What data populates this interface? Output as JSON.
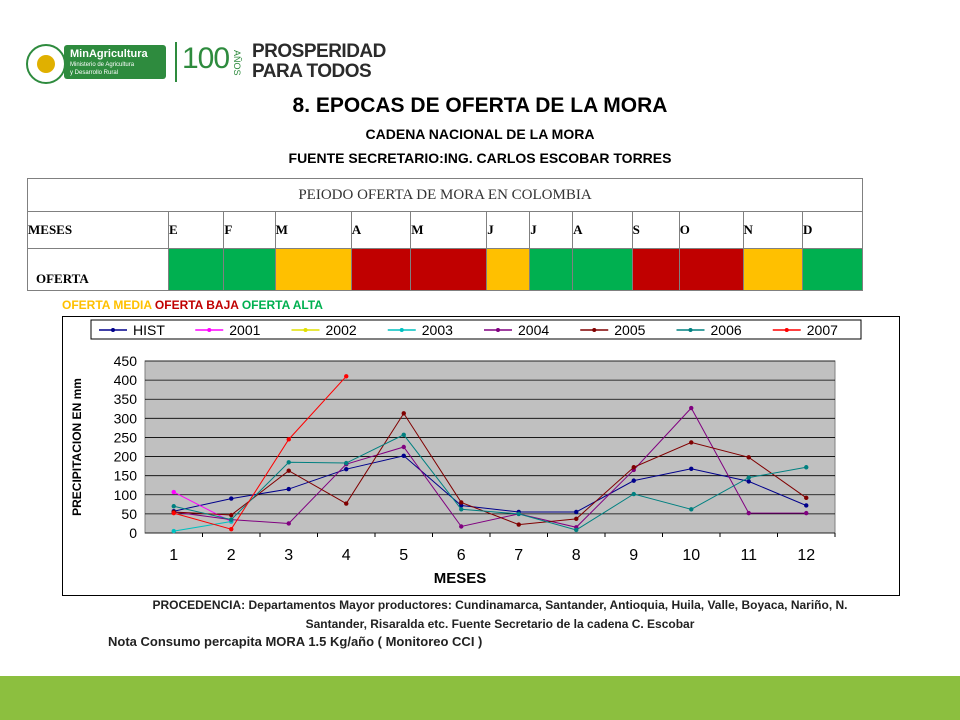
{
  "logos": {
    "ministry_name": "MinAgricultura",
    "ministry_line2": "Ministerio de Agricultura",
    "ministry_line3": "y Desarrollo Rural",
    "centenary_number": "100",
    "centenary_word": "AÑOS",
    "slogan_line1": "PROSPERIDAD",
    "slogan_line2": "PARA TODOS"
  },
  "titles": {
    "main": "8. EPOCAS DE OFERTA DE LA  MORA",
    "sub1": "CADENA NACIONAL DE LA MORA",
    "sub2": "FUENTE SECRETARIO:ING. CARLOS ESCOBAR TORRES"
  },
  "offer_table": {
    "header": "PEIODO OFERTA DE MORA EN COLOMBIA",
    "months_label": "MESES",
    "months": [
      "E",
      "F",
      "M",
      "A",
      "M",
      "J",
      "J",
      "A",
      "S",
      "O",
      "N",
      "D"
    ],
    "offer_label": "OFERTA",
    "offer_levels": [
      "alta",
      "alta",
      "media",
      "baja",
      "baja",
      "media",
      "alta",
      "alta",
      "baja",
      "baja",
      "media",
      "alta"
    ],
    "level_colors": {
      "alta": "#00b050",
      "media": "#ffc000",
      "baja": "#c00000"
    }
  },
  "offer_legend": {
    "media": "OFERTA MEDIA",
    "baja": "OFERTA BAJA",
    "alta": "OFERTA ALTA",
    "media_color": "#ffc000",
    "baja_color": "#c00000",
    "alta_color": "#00b050"
  },
  "chart_data": {
    "type": "line",
    "xlabel": "MESES",
    "ylabel": "PRECIPITACION EN mm",
    "x": [
      1,
      2,
      3,
      4,
      5,
      6,
      7,
      8,
      9,
      10,
      11,
      12
    ],
    "ylim": [
      0,
      450
    ],
    "yticks": [
      0,
      50,
      100,
      150,
      200,
      250,
      300,
      350,
      400,
      450
    ],
    "grid": true,
    "plot_background": "#c0c0c0",
    "legend_position": "top",
    "series": [
      {
        "name": "HIST",
        "color": "#00008b",
        "values": [
          57,
          90,
          115,
          167,
          202,
          72,
          55,
          55,
          137,
          168,
          135,
          72
        ]
      },
      {
        "name": "2001",
        "color": "#ff00ff",
        "values": [
          107,
          30,
          null,
          null,
          null,
          null,
          null,
          null,
          null,
          null,
          null,
          null
        ]
      },
      {
        "name": "2002",
        "color": "#e0e000",
        "values": [
          null,
          null,
          null,
          null,
          null,
          null,
          null,
          null,
          null,
          null,
          null,
          null
        ]
      },
      {
        "name": "2003",
        "color": "#00c0c0",
        "values": [
          5,
          30,
          null,
          null,
          null,
          null,
          null,
          null,
          null,
          null,
          null,
          null
        ]
      },
      {
        "name": "2004",
        "color": "#800080",
        "values": [
          55,
          35,
          25,
          180,
          225,
          17,
          50,
          15,
          165,
          327,
          52,
          52
        ]
      },
      {
        "name": "2005",
        "color": "#800000",
        "values": [
          55,
          47,
          163,
          77,
          313,
          80,
          22,
          37,
          172,
          237,
          198,
          92
        ]
      },
      {
        "name": "2006",
        "color": "#008080",
        "values": [
          70,
          35,
          185,
          183,
          257,
          62,
          50,
          8,
          102,
          62,
          145,
          172
        ]
      },
      {
        "name": "2007",
        "color": "#ff0000",
        "values": [
          52,
          10,
          245,
          410,
          null,
          null,
          null,
          null,
          null,
          null,
          null,
          null
        ]
      }
    ]
  },
  "notes": {
    "procedencia_line1": "PROCEDENCIA: Departamentos  Mayor productores: Cundinamarca, Santander, Antioquia, Huila, Valle, Boyaca, Nariño, N.",
    "procedencia_line2": "Santander, Risaralda  etc.  Fuente Secretario de la cadena C. Escobar",
    "consumo": "Nota Consumo percapita MORA 1.5 Kg/año ( Monitoreo CCI )"
  }
}
